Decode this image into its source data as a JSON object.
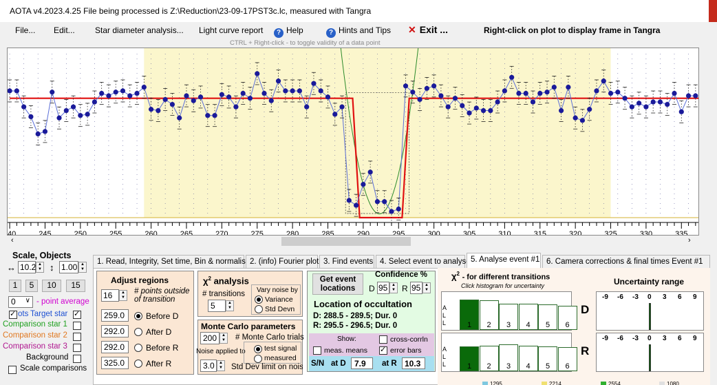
{
  "window": {
    "title": "AOTA v4.2023.4.25    File being processed is Z:\\Reduction\\23-09-17PST3c.lc, measured with Tangra"
  },
  "menu": {
    "file": "File...",
    "edit": "Edit...",
    "star_diameter": "Star diameter analysis...",
    "light_curve": "Light curve report",
    "help": "Help",
    "hints": "Hints and Tips",
    "exit": "Exit ...",
    "right_click_note": "Right-click on plot to display frame in Tangra"
  },
  "hint_line": "CTRL + Right-click  -  to toggle validity of a data point",
  "chart_data": {
    "type": "line",
    "title": "",
    "xlabel": "",
    "ylabel": "",
    "xlim": [
      239.7,
      337.6
    ],
    "x_ticks": [
      240,
      245,
      250,
      255,
      260,
      265,
      270,
      275,
      280,
      285,
      290,
      295,
      300,
      305,
      310,
      315,
      320,
      325,
      330,
      335
    ],
    "highlight_regions": [
      [
        259,
        325
      ]
    ],
    "event_region": [
      288.5,
      295.5
    ],
    "series": [
      {
        "x": [
          240,
          241,
          242,
          243,
          244,
          245,
          246,
          247,
          248,
          249,
          250,
          251,
          252,
          253,
          254,
          255,
          256,
          257,
          258,
          259,
          260,
          261,
          262,
          263,
          264,
          265,
          266,
          267,
          268,
          269,
          270,
          271,
          272,
          273,
          274,
          275,
          276,
          277,
          278,
          279,
          280,
          281,
          282,
          283,
          284,
          285,
          286,
          287,
          288,
          289,
          290,
          291,
          292,
          293,
          294,
          295,
          296,
          297,
          298,
          299,
          300,
          301,
          302,
          303,
          304,
          305,
          306,
          307,
          308,
          309,
          310,
          311,
          312,
          313,
          314,
          315,
          316,
          317,
          318,
          319,
          320,
          321,
          322,
          323,
          324,
          325,
          326,
          327,
          328,
          329,
          330,
          331,
          332,
          333,
          334,
          335,
          336,
          337
        ],
        "y": [
          1.06,
          1.06,
          0.93,
          0.85,
          0.71,
          0.73,
          1.05,
          0.84,
          0.9,
          0.93,
          0.86,
          0.87,
          0.97,
          1.04,
          1.02,
          1.05,
          1.06,
          1.02,
          1.04,
          1.09,
          0.91,
          0.9,
          0.99,
          0.95,
          0.84,
          1.02,
          0.98,
          1.01,
          0.86,
          0.86,
          1.03,
          1.01,
          0.93,
          1.04,
          1.0,
          1.2,
          1.04,
          0.98,
          1.14,
          1.06,
          1.06,
          1.06,
          0.93,
          1.12,
          1.06,
          1.01,
          0.87,
          0.93,
          0.17,
          0.13,
          0.3,
          0.4,
          0.16,
          0.16,
          0.08,
          0.1,
          1.1,
          1.05,
          0.99,
          1.08,
          1.1,
          1.02,
          0.93,
          1.0,
          0.94,
          0.88,
          0.92,
          0.9,
          0.9,
          0.97,
          1.06,
          1.17,
          1.04,
          1.04,
          0.97,
          1.04,
          1.05,
          1.09,
          0.9,
          1.09,
          0.84,
          0.82,
          0.91,
          1.06,
          1.14,
          1.04,
          1.05,
          1.0,
          0.93,
          0.96,
          0.93,
          0.97,
          0.97,
          0.95,
          1.04,
          0.89,
          1.02,
          1.02
        ]
      },
      {
        "name": "model",
        "x": [
          240,
          288.5,
          289.5,
          295.5,
          296.5,
          337.6
        ],
        "y": [
          1.0,
          1.0,
          0.03,
          0.03,
          1.0,
          1.0
        ]
      }
    ]
  },
  "left": {
    "heading": "Scale,  Objects",
    "scale_val": "10.2",
    "obj_val": "1.00",
    "b1": "1",
    "b5": "5",
    "b10": "10",
    "b15": "15",
    "avg_val": "0",
    "avg_label": "- point average",
    "target": "Target star",
    "target_pre": "ots",
    "comp1": "Comparison star 1",
    "comp2": "Comparison star 2",
    "comp3": "Comparison star 3",
    "background": "Background",
    "scale_comp": "Scale comparisons",
    "colors": {
      "comp1": "#20a020",
      "comp2": "#e07820",
      "comp3": "#b01890",
      "magenta": "#d000d0"
    }
  },
  "tabs": [
    "1.  Read, Integrity, Set time, Bin & normalise",
    "2. (info)  Fourier plot",
    "3. Find events",
    "4. Select event to analyse",
    "5. Analyse event #1",
    "6. Camera corrections & final times Event #1"
  ],
  "adjust": {
    "title": "Adjust regions",
    "points": "16",
    "points_label": "# points outside of transition",
    "v1": "259.0",
    "v2": "292.0",
    "v3": "292.0",
    "v4": "325.0",
    "before_d": "Before D",
    "after_d": "After D",
    "before_r": "Before R",
    "after_r": "After R"
  },
  "chi": {
    "title_a": "χ",
    "title_b": "2",
    "title_c": "analysis",
    "trans_label": "# transitions",
    "trans_val": "5",
    "vary": "Vary noise by",
    "variance": "Variance",
    "stddev": "Std Devn"
  },
  "monte": {
    "title": "Monte Carlo parameters",
    "trials_val": "200",
    "trials_label": "# Monte Carlo trials",
    "noise_label": "Noise applied to",
    "test_signal": "test signal",
    "measured": "measured",
    "sd_val": "3.0",
    "sd_label": "Std Dev limit on noise"
  },
  "event": {
    "get": "Get event locations",
    "conf": "Confidence %",
    "d": "D",
    "d_val": "95",
    "r": "R",
    "r_val": "95",
    "loc_title": "Location of occultation",
    "d_line": "D: 288.5 - 289.5; Dur. 0",
    "r_line": "R: 295.5 - 296.5; Dur. 0",
    "show": "Show:",
    "cross": "cross-corrln",
    "means": "meas. means",
    "errbars": "error bars",
    "sn": "S/N",
    "at_d": "at D",
    "sn_d": "7.9",
    "at_r": "at R",
    "sn_r": "10.3"
  },
  "hist": {
    "title_a": "χ",
    "title_b": "2",
    "title_c": "- for different transitions",
    "sub": "Click histogram for uncertainty",
    "all_a": "A",
    "all_l1": "L",
    "all_l2": "L",
    "labels": [
      "1",
      "2",
      "3",
      "4",
      "5",
      "6"
    ],
    "d_bars": [
      1.0,
      0.98,
      0.86,
      0.86,
      0.83,
      0.79
    ],
    "r_bars": [
      0.81,
      0.83,
      0.88,
      0.85,
      0.81,
      0.8
    ]
  },
  "unc": {
    "title": "Uncertainty range",
    "ticks": [
      "-9",
      "-6",
      "-3",
      "0",
      "3",
      "6",
      "9"
    ],
    "d_label": "D",
    "r_label": "R"
  },
  "status": {
    "a": "1295",
    "b": "2214",
    "c": "2554",
    "d": "1080"
  }
}
